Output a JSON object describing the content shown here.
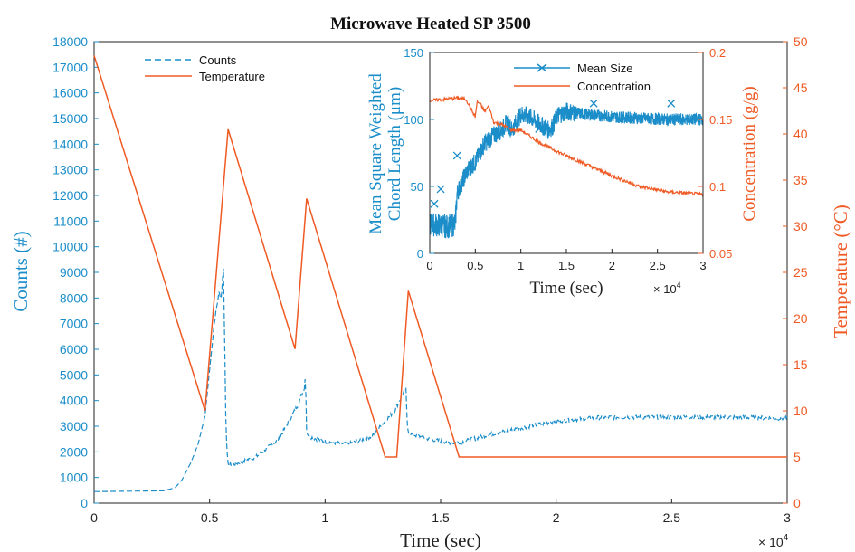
{
  "colors": {
    "blue": "#1b8dc9",
    "orange": "#ef5a24",
    "axis": "#222222"
  },
  "chart_data": [
    {
      "type": "line",
      "title": "Microwave Heated SP 3500",
      "xlabel": "Time (sec)",
      "x_exponent": "× 10",
      "x_exponent_power": "4",
      "ylabel_left": "Counts (#)",
      "ylabel_right": "Temperature (°C)",
      "xlim": [
        0,
        3
      ],
      "ylim_left": [
        0,
        18000
      ],
      "ylim_right": [
        0,
        50
      ],
      "x_ticks": [
        "0",
        "0.5",
        "1",
        "1.5",
        "2",
        "2.5",
        "3"
      ],
      "y_ticks_left": [
        "0",
        "1000",
        "2000",
        "3000",
        "4000",
        "5000",
        "6000",
        "7000",
        "8000",
        "9000",
        "10000",
        "11000",
        "12000",
        "13000",
        "14000",
        "15000",
        "16000",
        "17000",
        "18000"
      ],
      "y_ticks_right": [
        "0",
        "5",
        "10",
        "15",
        "20",
        "25",
        "30",
        "35",
        "40",
        "45",
        "50"
      ],
      "legend": [
        "Counts",
        "Temperature"
      ],
      "legend_position": "top-left",
      "series": [
        {
          "name": "Counts",
          "axis": "left",
          "style": "dashed",
          "x": [
            0,
            0.3,
            0.35,
            0.38,
            0.42,
            0.45,
            0.48,
            0.5,
            0.52,
            0.54,
            0.55,
            0.56,
            0.565,
            0.57,
            0.575,
            0.58,
            0.6,
            0.7,
            0.8,
            0.88,
            0.91,
            0.915,
            0.92,
            0.93,
            1.0,
            1.1,
            1.2,
            1.3,
            1.35,
            1.355,
            1.36,
            1.37,
            1.45,
            1.55,
            1.6,
            1.7,
            1.8,
            2.0,
            2.2,
            2.5,
            2.8,
            3.0
          ],
          "y": [
            450,
            480,
            600,
            900,
            1600,
            2300,
            3400,
            5200,
            7000,
            8200,
            8000,
            9200,
            6500,
            3500,
            2000,
            1500,
            1500,
            1800,
            2500,
            3800,
            4500,
            5000,
            2800,
            2600,
            2400,
            2300,
            2600,
            3600,
            4500,
            3000,
            2800,
            2700,
            2500,
            2350,
            2400,
            2650,
            2850,
            3200,
            3350,
            3350,
            3350,
            3300
          ]
        },
        {
          "name": "Temperature",
          "axis": "right",
          "style": "solid",
          "x": [
            0,
            0.48,
            0.58,
            0.87,
            0.92,
            1.26,
            1.3,
            1.31,
            1.36,
            1.58,
            3.0
          ],
          "y": [
            48.5,
            10.0,
            40.5,
            16.7,
            33.0,
            5.0,
            5.0,
            5.0,
            23.0,
            5.0,
            5.0
          ]
        }
      ]
    },
    {
      "type": "line",
      "xlabel": "Time (sec)",
      "x_exponent": "× 10",
      "x_exponent_power": "4",
      "ylabel_left_line1": "Mean Square Weighted",
      "ylabel_left_line2": "Chord Length (μm)",
      "ylabel_right": "Concentration (g/g)",
      "xlim": [
        0,
        3
      ],
      "ylim_left": [
        0,
        150
      ],
      "ylim_right": [
        0.05,
        0.2
      ],
      "x_ticks": [
        "0",
        "0.5",
        "1",
        "1.5",
        "2",
        "2.5",
        "3"
      ],
      "y_ticks_left": [
        "0",
        "50",
        "100",
        "150"
      ],
      "y_ticks_right": [
        "0.05",
        "0.1",
        "0.15",
        "0.2"
      ],
      "legend": [
        "Mean Size",
        "Concentration"
      ],
      "legend_position": "top-right",
      "series": [
        {
          "name": "Mean Size",
          "axis": "left",
          "style": "solid-x-markers",
          "x": [
            0,
            0.2,
            0.28,
            0.3,
            0.4,
            0.45,
            0.5,
            0.6,
            0.7,
            0.8,
            0.85,
            0.9,
            1.0,
            1.1,
            1.2,
            1.3,
            1.35,
            1.4,
            1.5,
            1.7,
            2.0,
            2.3,
            2.6,
            3.0
          ],
          "y": [
            22,
            20,
            22,
            45,
            60,
            65,
            68,
            82,
            88,
            93,
            98,
            92,
            104,
            102,
            97,
            92,
            95,
            103,
            106,
            104,
            102,
            101,
            100,
            100
          ],
          "markers_x": [
            0.05,
            0.12,
            0.3,
            1.2,
            1.8,
            2.65
          ],
          "markers_y": [
            37,
            48,
            73,
            93,
            112,
            112
          ]
        },
        {
          "name": "Concentration",
          "axis": "right",
          "style": "solid",
          "x": [
            0,
            0.3,
            0.4,
            0.45,
            0.5,
            0.52,
            0.55,
            0.6,
            0.65,
            0.7,
            0.8,
            0.9,
            1.0,
            1.2,
            1.4,
            1.6,
            1.8,
            2.0,
            2.3,
            2.6,
            3.0
          ],
          "y": [
            0.164,
            0.166,
            0.165,
            0.158,
            0.152,
            0.163,
            0.162,
            0.156,
            0.16,
            0.148,
            0.146,
            0.142,
            0.142,
            0.133,
            0.126,
            0.12,
            0.114,
            0.108,
            0.1,
            0.096,
            0.094
          ]
        }
      ]
    }
  ]
}
